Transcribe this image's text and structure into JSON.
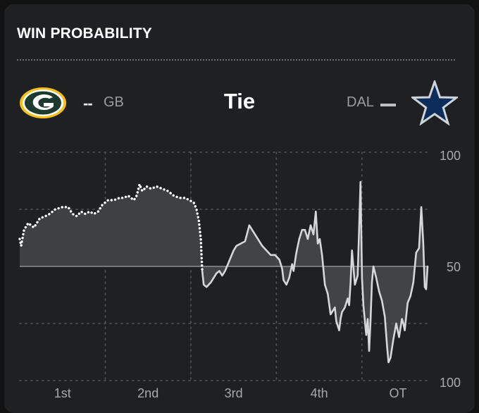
{
  "header": {
    "title": "WIN PROBABILITY"
  },
  "teams": {
    "home": {
      "abbr": "GB",
      "marker": "--",
      "logo_icon": "packers-g-logo",
      "color": "#1c3a2d"
    },
    "away": {
      "abbr": "DAL",
      "logo_icon": "cowboys-star-logo",
      "color": "#0c2c5c"
    }
  },
  "status": "Tie",
  "chart_data": {
    "type": "line",
    "quarters": [
      "1st",
      "2nd",
      "3rd",
      "4th",
      "OT"
    ],
    "y_ticks": [
      "100",
      "50",
      "100"
    ],
    "ylim": [
      0,
      100
    ],
    "grid": true,
    "series": [
      {
        "name": "GB",
        "style": "dotted",
        "color": "#ffffff",
        "points": [
          [
            0,
            62
          ],
          [
            0.5,
            59
          ],
          [
            1.5,
            66
          ],
          [
            3,
            69
          ],
          [
            5,
            67
          ],
          [
            7,
            71
          ],
          [
            9,
            72
          ],
          [
            10.5,
            73
          ],
          [
            12.5,
            75
          ],
          [
            15,
            76
          ],
          [
            17,
            76
          ],
          [
            18.5,
            73
          ],
          [
            20,
            72
          ],
          [
            21.5,
            74
          ],
          [
            23,
            73
          ],
          [
            24.5,
            74
          ],
          [
            26,
            73
          ],
          [
            27.5,
            74
          ],
          [
            29,
            77
          ],
          [
            31,
            79
          ],
          [
            33,
            79
          ],
          [
            35,
            80
          ],
          [
            36.5,
            80
          ],
          [
            38,
            81
          ],
          [
            40,
            79
          ],
          [
            41,
            81
          ],
          [
            42,
            86
          ],
          [
            43,
            83
          ],
          [
            44.5,
            85
          ],
          [
            46,
            84
          ],
          [
            48,
            85
          ],
          [
            50,
            84
          ],
          [
            52,
            83
          ],
          [
            54,
            81
          ],
          [
            56,
            80
          ],
          [
            58,
            80
          ],
          [
            59.5,
            79
          ],
          [
            61,
            78
          ],
          [
            62,
            75
          ],
          [
            62.8,
            70
          ],
          [
            63.5,
            62
          ],
          [
            64,
            48
          ]
        ]
      },
      {
        "name": "DAL",
        "style": "solid",
        "color": "#d6d7d9",
        "points": [
          [
            64,
            48
          ],
          [
            64.5,
            42
          ],
          [
            65.5,
            41
          ],
          [
            67,
            43
          ],
          [
            69,
            47
          ],
          [
            70,
            48
          ],
          [
            71,
            46
          ],
          [
            72,
            48
          ],
          [
            73,
            51
          ],
          [
            74,
            54
          ],
          [
            75,
            57
          ],
          [
            76,
            59
          ],
          [
            77.5,
            60
          ],
          [
            79,
            61
          ],
          [
            80.5,
            68
          ],
          [
            82,
            65
          ],
          [
            83.5,
            62
          ],
          [
            85,
            59
          ],
          [
            86.5,
            57
          ],
          [
            88,
            55
          ],
          [
            89.5,
            55
          ],
          [
            91,
            53
          ],
          [
            92,
            49
          ],
          [
            92.5,
            44
          ],
          [
            93.5,
            42
          ],
          [
            94.5,
            45
          ],
          [
            95.5,
            51
          ],
          [
            96,
            48
          ],
          [
            97,
            56
          ],
          [
            98,
            62
          ],
          [
            99,
            66
          ],
          [
            100,
            66
          ],
          [
            101,
            62
          ],
          [
            102,
            68
          ],
          [
            103,
            64
          ],
          [
            103.8,
            74
          ],
          [
            104.5,
            60
          ],
          [
            105.2,
            62
          ],
          [
            106,
            55
          ],
          [
            107,
            42
          ],
          [
            108,
            38
          ],
          [
            109,
            29
          ],
          [
            110,
            31
          ],
          [
            110.5,
            32
          ],
          [
            111,
            26
          ],
          [
            112,
            22
          ],
          [
            112.5,
            27
          ],
          [
            113,
            30
          ],
          [
            114,
            32
          ],
          [
            115,
            36
          ],
          [
            115.5,
            33
          ],
          [
            116,
            43
          ],
          [
            116.5,
            57
          ],
          [
            117.5,
            42
          ],
          [
            118.5,
            46
          ],
          [
            119.5,
            87
          ],
          [
            120,
            45
          ],
          [
            120.5,
            33
          ],
          [
            121.5,
            20
          ],
          [
            122,
            27
          ],
          [
            122.5,
            13
          ],
          [
            123,
            26
          ],
          [
            123.5,
            43
          ],
          [
            124,
            50
          ],
          [
            125,
            45
          ],
          [
            126,
            39
          ],
          [
            127,
            35
          ],
          [
            128,
            28
          ],
          [
            128.8,
            15
          ],
          [
            129.3,
            8
          ],
          [
            130,
            10
          ],
          [
            131,
            18
          ],
          [
            132,
            25
          ],
          [
            133,
            19
          ],
          [
            134,
            27
          ],
          [
            134.5,
            25
          ],
          [
            135,
            22
          ],
          [
            135.5,
            28
          ],
          [
            136,
            34
          ],
          [
            137,
            37
          ],
          [
            138,
            43
          ],
          [
            139,
            56
          ],
          [
            140,
            58
          ],
          [
            140.8,
            76
          ],
          [
            141.5,
            60
          ],
          [
            142,
            41
          ],
          [
            142.5,
            40
          ],
          [
            143,
            50
          ]
        ]
      }
    ]
  }
}
